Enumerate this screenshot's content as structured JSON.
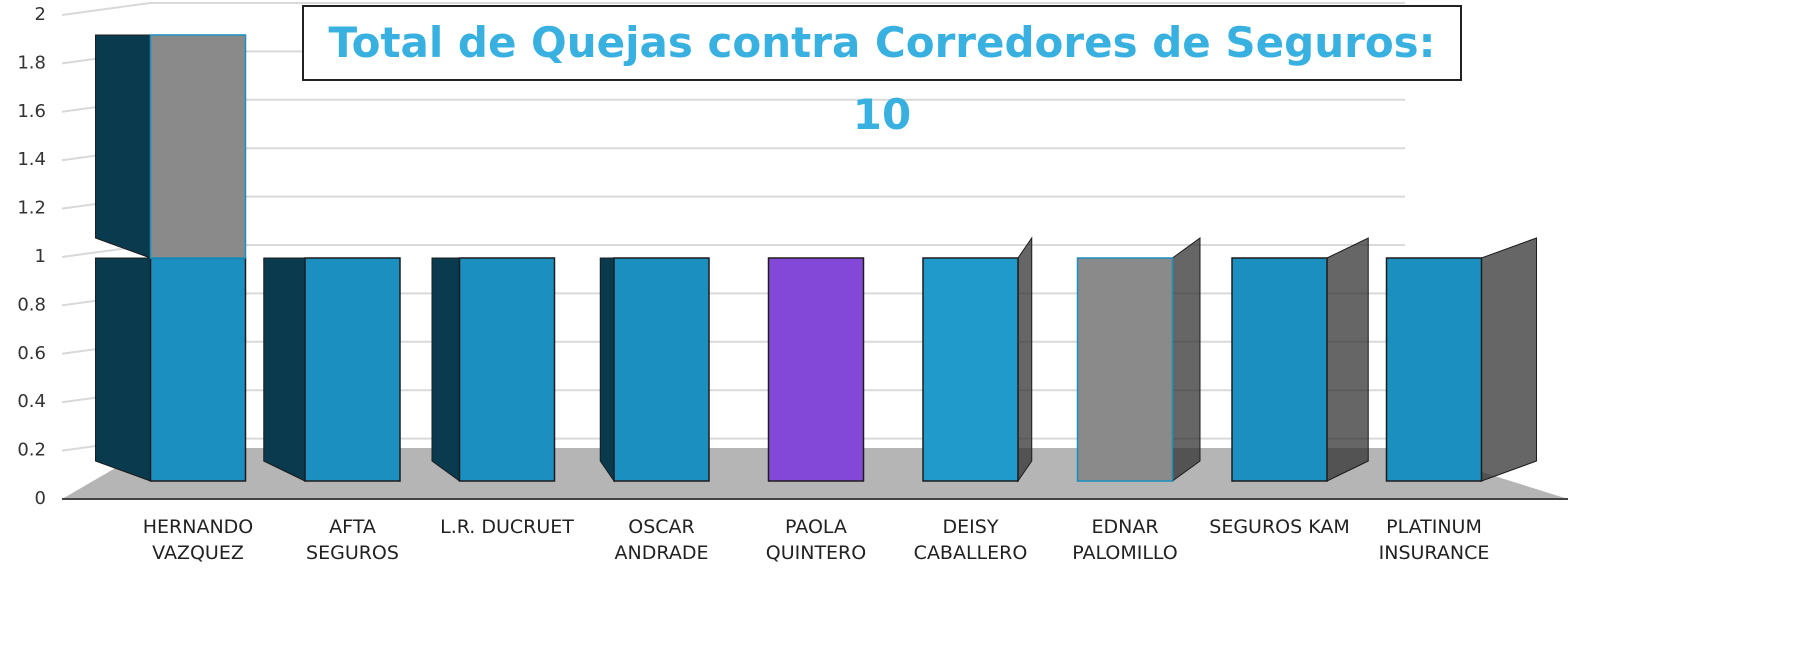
{
  "chart_data": {
    "type": "bar3d_stacked",
    "title": "Total de Quejas contra Corredores de Seguros: 10",
    "categories": [
      "HERNANDO\nVAZQUEZ",
      "AFTA\nSEGUROS",
      "L.R. DUCRUET",
      "OSCAR\nANDRADE",
      "PAOLA\nQUINTERO",
      "DEISY\nCABALLERO",
      "EDNAR\nPALOMILLO",
      "SEGUROS KAM",
      "PLATINUM\nINSURANCE"
    ],
    "series": [
      {
        "color": "#1a8fc0",
        "point_colors": [
          "#1a8fc0",
          "#1a8fc0",
          "#1a8fc0",
          "#1a8fc0",
          "#8448d8",
          "#1f9acb",
          "#1a8fc0",
          "#1a8fc0",
          "#1a8fc0"
        ],
        "values": [
          1,
          1,
          1,
          1,
          1,
          1,
          0,
          1,
          1
        ]
      },
      {
        "color": "#8a8a8a",
        "values": [
          1,
          0,
          0,
          0,
          0,
          0,
          1,
          0,
          0
        ]
      }
    ],
    "ylim": [
      0,
      2
    ],
    "yticks": [
      0,
      0.2,
      0.4,
      0.6,
      0.8,
      1,
      1.2,
      1.4,
      1.6,
      1.8,
      2
    ],
    "grid": true
  }
}
